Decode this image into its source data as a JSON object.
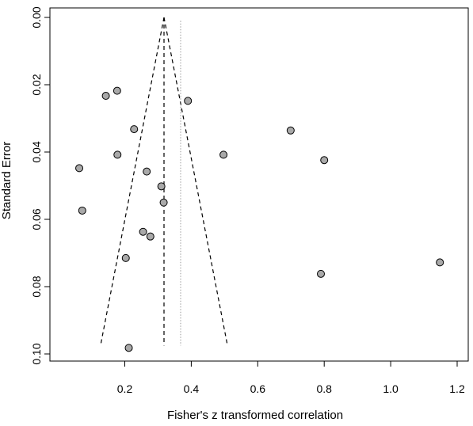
{
  "chart_data": {
    "type": "scatter",
    "title": "",
    "xlabel": "Fisher's z transformed correlation",
    "ylabel": "Standard Error",
    "xlim": [
      0.03,
      1.2
    ],
    "ylim": [
      0.1,
      0.0
    ],
    "y_reversed": true,
    "xticks": [
      0.2,
      0.4,
      0.6,
      0.8,
      1.0,
      1.2
    ],
    "xtick_labels": [
      "0.2",
      "0.4",
      "0.6",
      "0.8",
      "1.0",
      "1.2"
    ],
    "yticks": [
      0.0,
      0.02,
      0.04,
      0.06,
      0.08,
      0.1
    ],
    "ytick_labels": [
      "0.00",
      "0.02",
      "0.04",
      "0.06",
      "0.08",
      "0.10"
    ],
    "grid": false,
    "legend": "none",
    "points": [
      {
        "x": 0.143,
        "y": 0.0233
      },
      {
        "x": 0.177,
        "y": 0.0218
      },
      {
        "x": 0.39,
        "y": 0.0248
      },
      {
        "x": 0.228,
        "y": 0.0332
      },
      {
        "x": 0.699,
        "y": 0.0336
      },
      {
        "x": 0.178,
        "y": 0.0408
      },
      {
        "x": 0.497,
        "y": 0.0408
      },
      {
        "x": 0.8,
        "y": 0.0424
      },
      {
        "x": 0.063,
        "y": 0.0448
      },
      {
        "x": 0.266,
        "y": 0.0458
      },
      {
        "x": 0.31,
        "y": 0.0502
      },
      {
        "x": 0.317,
        "y": 0.055
      },
      {
        "x": 0.072,
        "y": 0.0574
      },
      {
        "x": 0.255,
        "y": 0.0637
      },
      {
        "x": 0.277,
        "y": 0.0651
      },
      {
        "x": 0.203,
        "y": 0.0715
      },
      {
        "x": 1.148,
        "y": 0.0728
      },
      {
        "x": 0.79,
        "y": 0.0762
      },
      {
        "x": 0.212,
        "y": 0.0982
      }
    ],
    "funnel": {
      "center_x": 0.318,
      "apex_se": 0.0,
      "base_se": 0.0975,
      "left_base_x": 0.127,
      "right_base_x": 0.509
    },
    "reference_line_x": 0.368,
    "colors": {
      "point_fill": "#a9a9a9",
      "point_stroke": "#000000",
      "funnel_line": "#000000",
      "reference_line": "#9a9a9a"
    }
  }
}
